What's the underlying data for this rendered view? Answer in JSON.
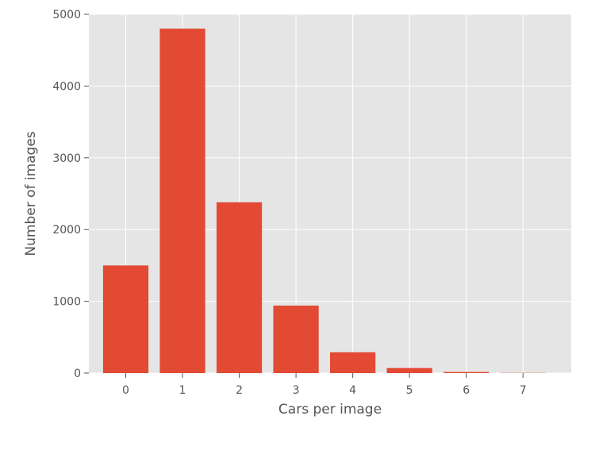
{
  "chart_data": {
    "type": "bar",
    "title": "",
    "xlabel": "Cars per image",
    "ylabel": "Number of images",
    "categories": [
      "0",
      "1",
      "2",
      "3",
      "4",
      "5",
      "6",
      "7"
    ],
    "x": [
      0,
      1,
      2,
      3,
      4,
      5,
      6,
      7
    ],
    "values": [
      1500,
      4800,
      2380,
      940,
      290,
      70,
      15,
      3
    ],
    "ylim": [
      0,
      5000
    ],
    "yticks": [
      0,
      1000,
      2000,
      3000,
      4000,
      5000
    ],
    "xticks": [
      0,
      1,
      2,
      3,
      4,
      5,
      6,
      7
    ],
    "grid": true,
    "style": "ggplot",
    "colors": {
      "bar": "#E24A33",
      "panel": "#E5E5E5",
      "grid": "#FFFFFF",
      "text": "#555555"
    }
  }
}
